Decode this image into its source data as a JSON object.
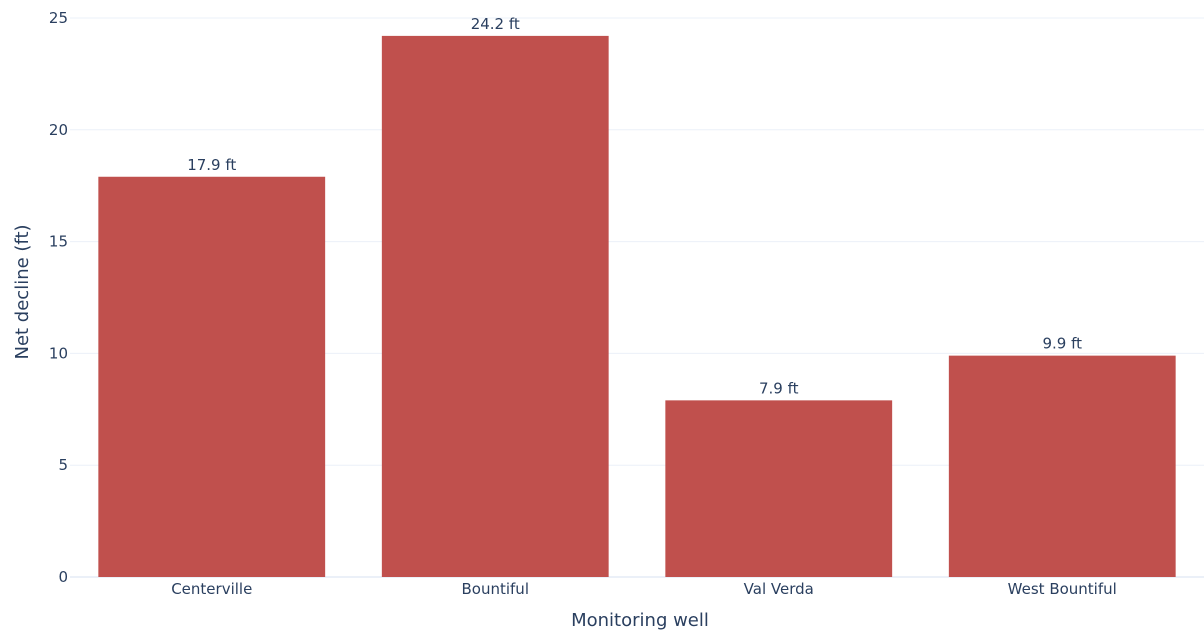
{
  "chart_data": {
    "type": "bar",
    "categories": [
      "Centerville",
      "Bountiful",
      "Val Verda",
      "West Bountiful"
    ],
    "values": [
      17.9,
      24.2,
      7.9,
      9.9
    ],
    "data_labels": [
      "17.9 ft",
      "24.2 ft",
      "7.9 ft",
      "9.9 ft"
    ],
    "title": "",
    "xlabel": "Monitoring well",
    "ylabel": "Net decline (ft)",
    "ylim": [
      0,
      25
    ],
    "yticks": [
      0,
      5,
      10,
      15,
      20,
      25
    ],
    "grid": true,
    "legend": "none",
    "colors": {
      "bar": "#c0504d",
      "text": "#2a3f5f",
      "grid": "#ebf0f8",
      "axis_line": "#ebf0f8"
    }
  }
}
